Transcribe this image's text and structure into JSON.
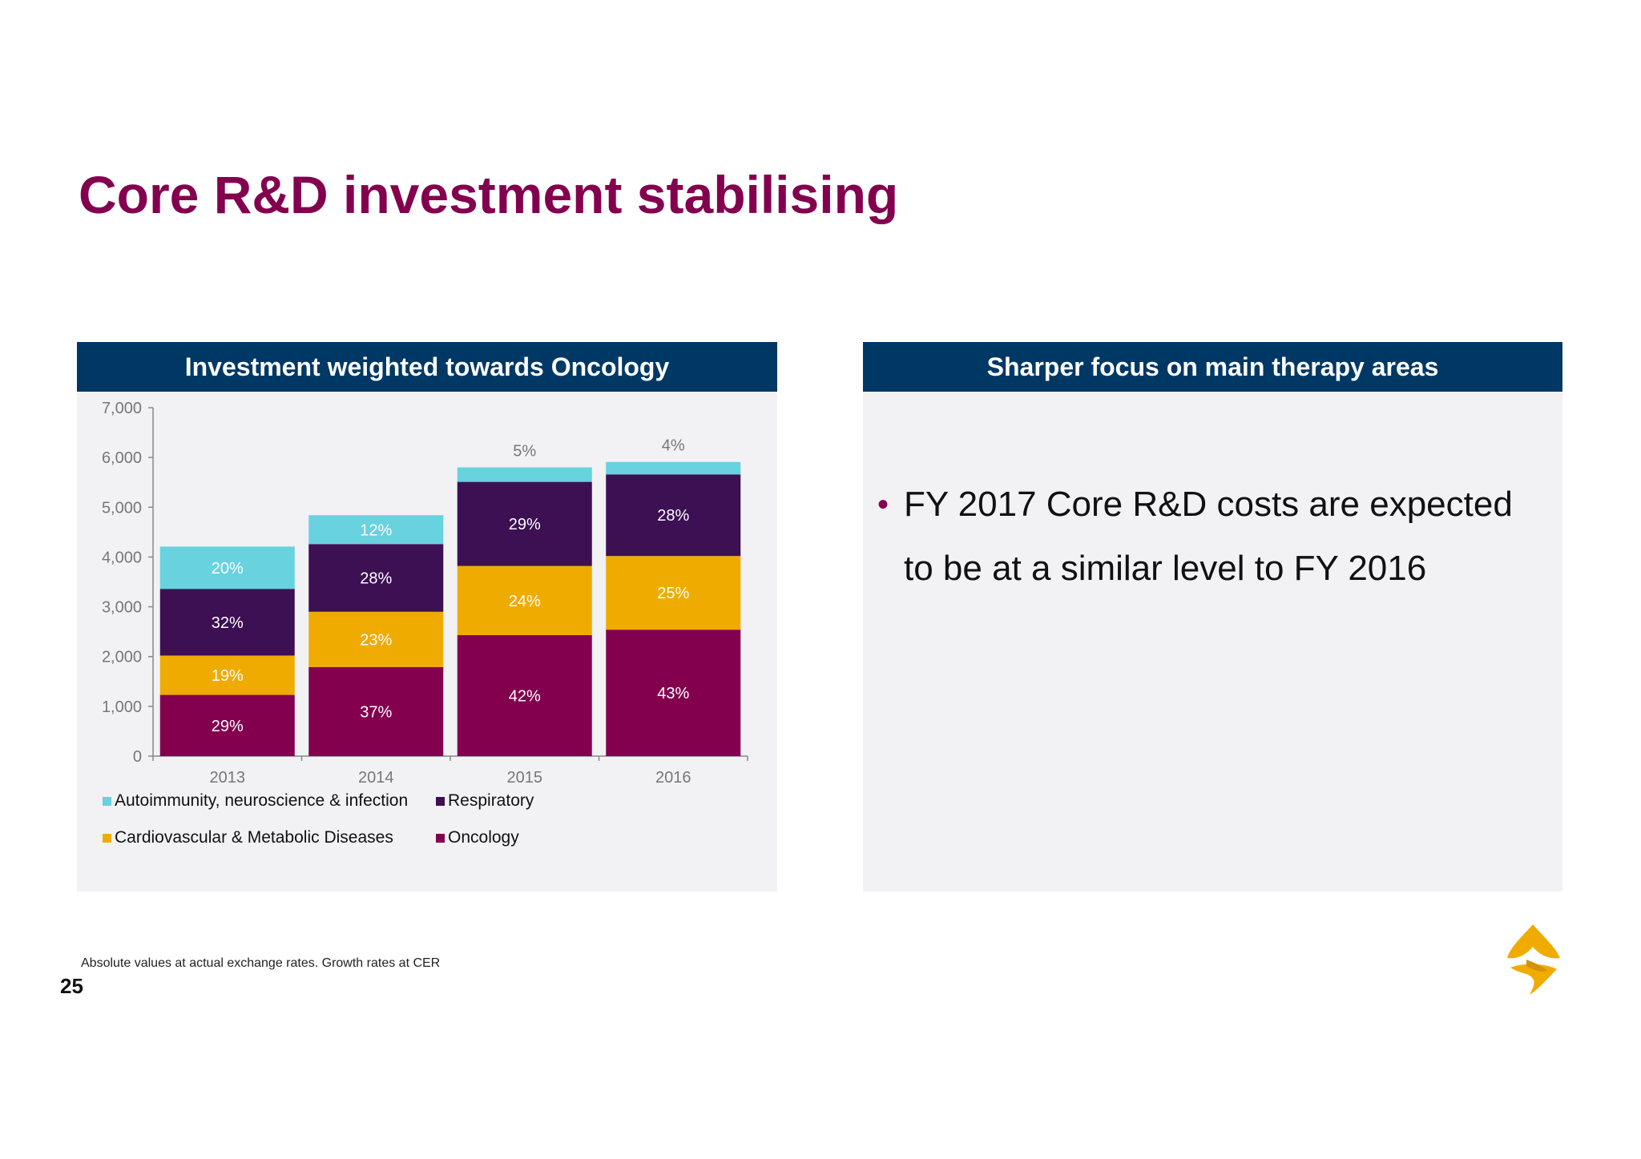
{
  "slide": {
    "title": "Core R&D investment stabilising",
    "left_panel_title": "Investment weighted towards Oncology",
    "right_panel_title": "Sharper focus on main therapy areas",
    "bullet": "FY 2017 Core R&D costs are expected to be at a similar level to FY 2016",
    "footnote": "Absolute values at actual exchange rates. Growth rates at CER",
    "page_number": "25"
  },
  "icons": {
    "bullet": "bullet-dot",
    "logo": "astrazeneca-logo"
  },
  "chart_data": {
    "type": "bar",
    "stacked": true,
    "categories": [
      "2013",
      "2014",
      "2015",
      "2016"
    ],
    "ylim": [
      0,
      7000
    ],
    "yticks": [
      0,
      1000,
      2000,
      3000,
      4000,
      5000,
      6000,
      7000
    ],
    "ytick_labels": [
      "0",
      "1,000",
      "2,000",
      "3,000",
      "4,000",
      "5,000",
      "6,000",
      "7,000"
    ],
    "grid": false,
    "legend_position": "bottom",
    "series": [
      {
        "name": "Oncology",
        "color": "#83004f",
        "values": [
          1230,
          1790,
          2430,
          2540
        ],
        "labels": [
          "29%",
          "37%",
          "42%",
          "43%"
        ]
      },
      {
        "name": "Cardiovascular & Metabolic Diseases",
        "color": "#f0ab00",
        "values": [
          790,
          1110,
          1390,
          1480
        ],
        "labels": [
          "19%",
          "23%",
          "24%",
          "25%"
        ]
      },
      {
        "name": "Respiratory",
        "color": "#3c1053",
        "values": [
          1340,
          1360,
          1690,
          1640
        ],
        "labels": [
          "32%",
          "28%",
          "29%",
          "28%"
        ]
      },
      {
        "name": "Autoimmunity, neuroscience & infection",
        "color": "#68d2df",
        "values": [
          850,
          580,
          290,
          250
        ],
        "labels": [
          "20%",
          "12%",
          "5%",
          "4%"
        ]
      }
    ],
    "legend_order": [
      "Autoimmunity, neuroscience & infection",
      "Respiratory",
      "Cardiovascular & Metabolic Diseases",
      "Oncology"
    ]
  }
}
